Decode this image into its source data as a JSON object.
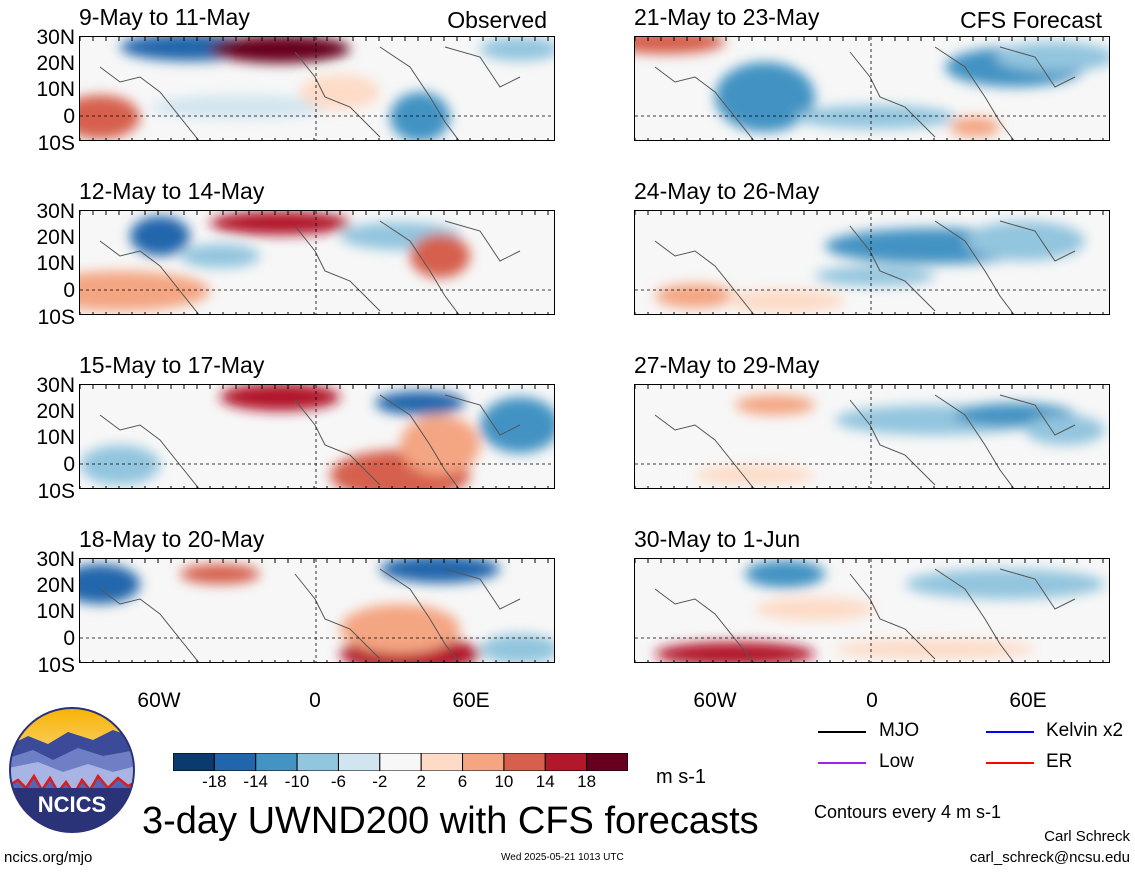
{
  "panels": [
    {
      "title": "9-May to 11-May",
      "corner": "Observed"
    },
    {
      "title": "21-May to 23-May",
      "corner": "CFS Forecast"
    },
    {
      "title": "12-May to 14-May",
      "corner": ""
    },
    {
      "title": "24-May to 26-May",
      "corner": ""
    },
    {
      "title": "15-May to 17-May",
      "corner": ""
    },
    {
      "title": "27-May to 29-May",
      "corner": ""
    },
    {
      "title": "18-May to 20-May",
      "corner": ""
    },
    {
      "title": "30-May to 1-Jun",
      "corner": ""
    }
  ],
  "lat_labels": [
    "30N",
    "20N",
    "10N",
    "0",
    "10S"
  ],
  "lon_labels": [
    "60W",
    "0",
    "60E"
  ],
  "colorbar": {
    "labels": [
      "-18",
      "-14",
      "-10",
      "-6",
      "-2",
      "2",
      "6",
      "10",
      "14",
      "18"
    ],
    "colors": [
      "#0b3a6e",
      "#2166ac",
      "#4393c3",
      "#92c5de",
      "#d1e5f0",
      "#f7f7f7",
      "#fddbc7",
      "#f4a582",
      "#d6604d",
      "#b2182b",
      "#67001f"
    ],
    "units": "m s-1"
  },
  "legend": {
    "items": [
      {
        "label": "MJO",
        "color": "#000000"
      },
      {
        "label": "Kelvin x2",
        "color": "#0000ff"
      },
      {
        "label": "Low",
        "color": "#a020f0"
      },
      {
        "label": "ER",
        "color": "#ff0000"
      }
    ],
    "contours_note": "Contours every 4 m s-1"
  },
  "main_title": "3-day UWND200 with CFS forecasts",
  "logo_text": "NCICS",
  "footer": {
    "url": "ncics.org/mjo",
    "timestamp": "Wed 2025-05-21 1013 UTC",
    "author": "Carl Schreck",
    "email": "carl_schreck@ncsu.edu"
  }
}
